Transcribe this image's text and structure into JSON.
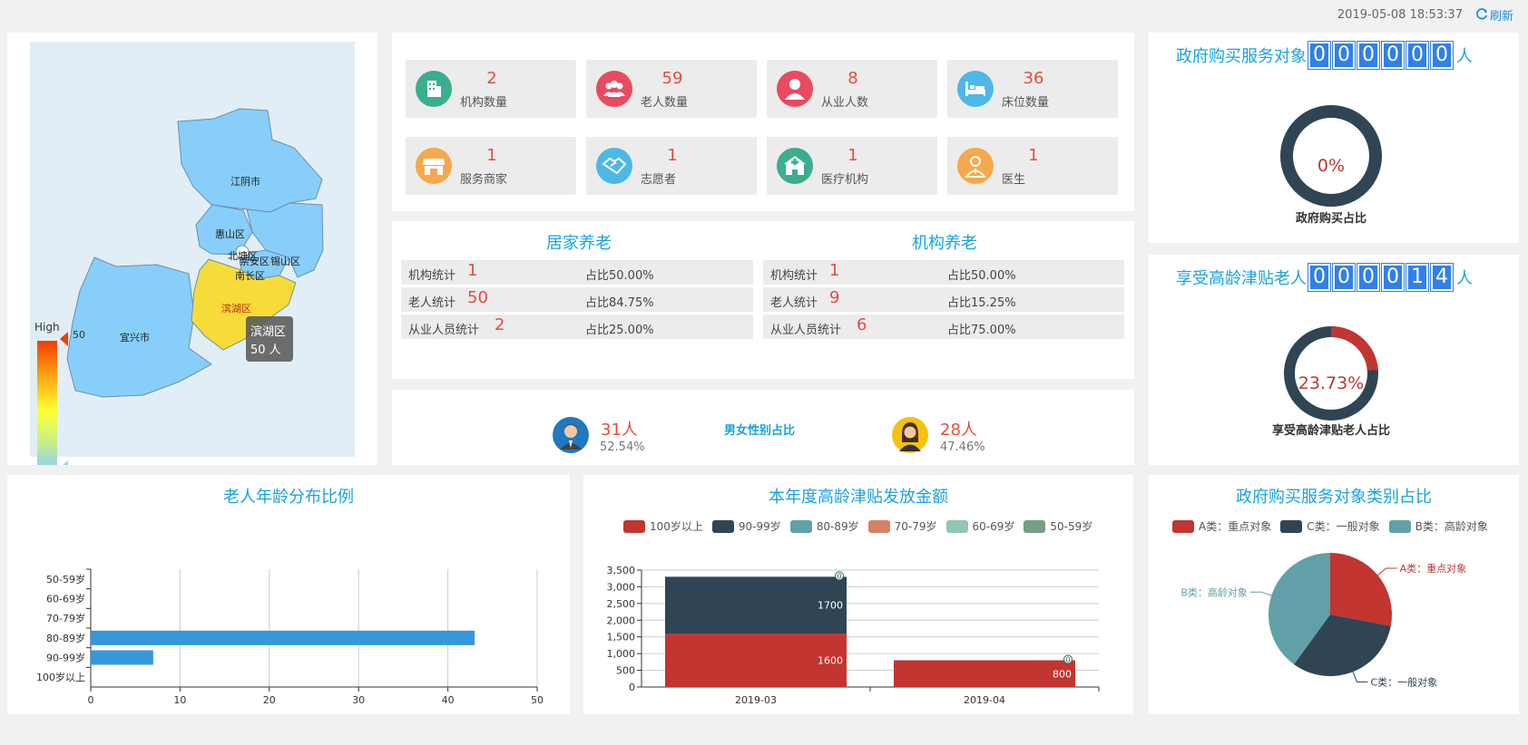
{
  "header": {
    "datetime": "2019-05-08 18:53:37",
    "refresh_label": "刷新",
    "refresh_icon": "refresh-icon"
  },
  "map": {
    "regions": [
      "江阴市",
      "惠山区",
      "北塘区",
      "崇安区",
      "锡山区",
      "南长区",
      "滨湖区",
      "宜兴市"
    ],
    "tooltip": {
      "region": "滨湖区",
      "value": "50 人"
    },
    "visual_map": {
      "high_label": "High",
      "low_label": "Low",
      "max": "50",
      "min": "0",
      "pointer_value": "50"
    }
  },
  "stats": [
    {
      "value": "2",
      "label": "机构数量",
      "color": "#3aae8f",
      "icon": "building-icon"
    },
    {
      "value": "59",
      "label": "老人数量",
      "color": "#e84a5f",
      "icon": "group-icon"
    },
    {
      "value": "8",
      "label": "从业人数",
      "color": "#e84a5f",
      "icon": "person-icon"
    },
    {
      "value": "36",
      "label": "床位数量",
      "color": "#4db8e8",
      "icon": "bed-icon"
    },
    {
      "value": "1",
      "label": "服务商家",
      "color": "#f5a94a",
      "icon": "shop-icon"
    },
    {
      "value": "1",
      "label": "志愿者",
      "color": "#4db8e8",
      "icon": "handshake-icon"
    },
    {
      "value": "1",
      "label": "医疗机构",
      "color": "#3aae8f",
      "icon": "hospital-icon"
    },
    {
      "value": "1",
      "label": "医生",
      "color": "#f5a94a",
      "icon": "doctor-icon"
    }
  ],
  "home_care": {
    "title": "居家养老",
    "rows": [
      {
        "label": "机构统计",
        "value": "1",
        "ratio": "占比50.00%"
      },
      {
        "label": "老人统计",
        "value": "50",
        "ratio": "占比84.75%"
      },
      {
        "label": "从业人员统计",
        "value": "2",
        "ratio": "占比25.00%"
      }
    ]
  },
  "institution_care": {
    "title": "机构养老",
    "rows": [
      {
        "label": "机构统计",
        "value": "1",
        "ratio": "占比50.00%"
      },
      {
        "label": "老人统计",
        "value": "9",
        "ratio": "占比15.25%"
      },
      {
        "label": "从业人员统计",
        "value": "6",
        "ratio": "占比75.00%"
      }
    ]
  },
  "gender": {
    "title": "男女性别占比",
    "male": {
      "count": "31人",
      "pct": "52.54%"
    },
    "female": {
      "count": "28人",
      "pct": "47.46%"
    }
  },
  "gov_purchase": {
    "title_prefix": "政府购买服务对象",
    "digits": [
      "0",
      "0",
      "0",
      "0",
      "0",
      "0"
    ],
    "title_suffix": "人",
    "donut_label": "0%",
    "donut_value": 0,
    "caption": "政府购买占比"
  },
  "subsidy": {
    "title_prefix": "享受高龄津贴老人",
    "digits": [
      "0",
      "0",
      "0",
      "0",
      "1",
      "4"
    ],
    "title_suffix": "人",
    "donut_label": "23.73%",
    "donut_value": 23.73,
    "caption": "享受高龄津贴老人占比"
  },
  "colors": {
    "accent": "#1aa3dc",
    "red": "#c23531",
    "navy": "#2f4554",
    "teal": "#61a0a8",
    "bar_blue": "#3498db",
    "digit_blue": "#2f80ed"
  },
  "chart_data": [
    {
      "type": "bar",
      "orientation": "horizontal",
      "title": "老人年龄分布比例",
      "categories": [
        "50-59岁",
        "60-69岁",
        "70-79岁",
        "80-89岁",
        "90-99岁",
        "100岁以上"
      ],
      "values": [
        0,
        0,
        0,
        43,
        7,
        0
      ],
      "xlim": [
        0,
        50
      ],
      "xticks": [
        "0",
        "10",
        "20",
        "30",
        "40",
        "50"
      ],
      "grid": true
    },
    {
      "type": "bar",
      "stacked": true,
      "title": "本年度高龄津贴发放金额",
      "categories": [
        "2019-03",
        "2019-04"
      ],
      "legend_position": "top",
      "series": [
        {
          "name": "100岁以上",
          "color": "#c23531",
          "values": [
            1600,
            800
          ]
        },
        {
          "name": "90-99岁",
          "color": "#2f4554",
          "values": [
            1700,
            0
          ]
        },
        {
          "name": "80-89岁",
          "color": "#61a0a8",
          "values": [
            0,
            0
          ]
        },
        {
          "name": "70-79岁",
          "color": "#d48265",
          "values": [
            0,
            0
          ]
        },
        {
          "name": "60-69岁",
          "color": "#91c7ae",
          "values": [
            0,
            0
          ]
        },
        {
          "name": "50-59岁",
          "color": "#749f83",
          "values": [
            0,
            0
          ]
        }
      ],
      "ylim": [
        0,
        3500
      ],
      "yticks": [
        "0",
        "500",
        "1,000",
        "1,500",
        "2,000",
        "2,500",
        "3,000",
        "3,500"
      ],
      "grid": true
    },
    {
      "type": "pie",
      "title": "政府购买服务对象类别占比",
      "legend_position": "top",
      "slices": [
        {
          "name": "A类：重点对象",
          "value": 28,
          "color": "#c23531"
        },
        {
          "name": "C类：一般对象",
          "value": 32,
          "color": "#2f4554"
        },
        {
          "name": "B类：高龄对象",
          "value": 40,
          "color": "#61a0a8"
        }
      ]
    }
  ]
}
